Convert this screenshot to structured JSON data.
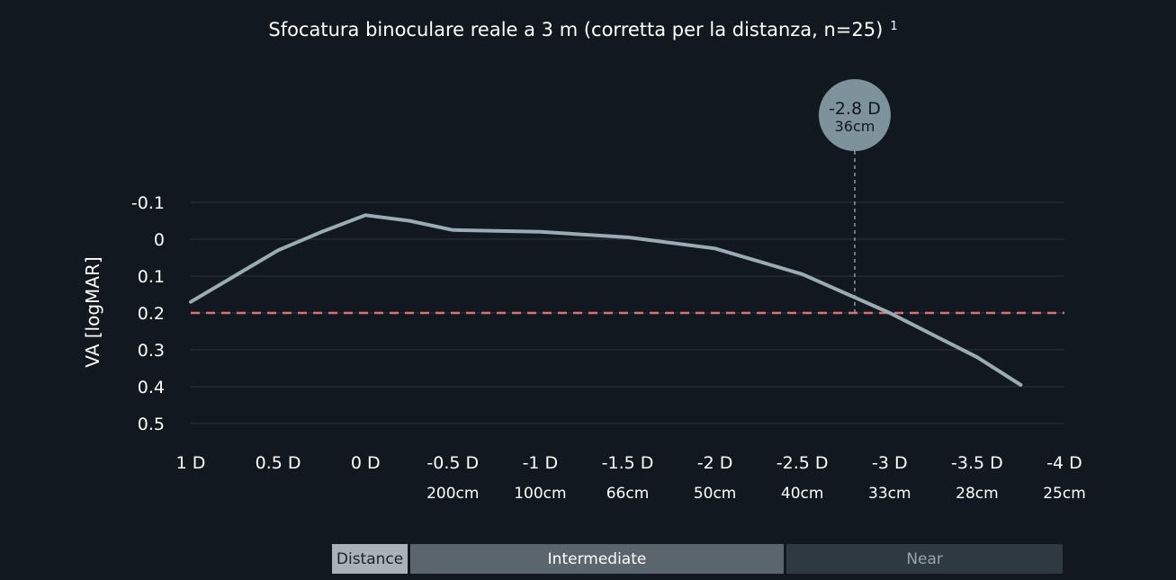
{
  "chart_data": {
    "type": "line",
    "title": "Sfocatura binoculare reale a 3 m (corretta per la distanza, n=25)",
    "title_note": "1",
    "ylabel": "VA [logMAR]",
    "xlabel": "",
    "x_ticks": [
      {
        "value": 1,
        "label": "1 D",
        "sub": ""
      },
      {
        "value": 0.5,
        "label": "0.5 D",
        "sub": ""
      },
      {
        "value": 0,
        "label": "0 D",
        "sub": ""
      },
      {
        "value": -0.5,
        "label": "-0.5 D",
        "sub": "200cm"
      },
      {
        "value": -1,
        "label": "-1 D",
        "sub": "100cm"
      },
      {
        "value": -1.5,
        "label": "-1.5 D",
        "sub": "66cm"
      },
      {
        "value": -2,
        "label": "-2 D",
        "sub": "50cm"
      },
      {
        "value": -2.5,
        "label": "-2.5 D",
        "sub": "40cm"
      },
      {
        "value": -3,
        "label": "-3 D",
        "sub": "33cm"
      },
      {
        "value": -3.5,
        "label": "-3.5 D",
        "sub": "28cm"
      },
      {
        "value": -4,
        "label": "-4 D",
        "sub": "25cm"
      }
    ],
    "y_ticks": [
      {
        "value": -0.1,
        "label": "-0.1"
      },
      {
        "value": 0,
        "label": "0"
      },
      {
        "value": 0.1,
        "label": "0.1"
      },
      {
        "value": 0.2,
        "label": "0.2"
      },
      {
        "value": 0.3,
        "label": "0.3"
      },
      {
        "value": 0.4,
        "label": "0.4"
      },
      {
        "value": 0.5,
        "label": "0.5"
      }
    ],
    "xlim": [
      1,
      -4
    ],
    "ylim": [
      -0.1,
      0.5
    ],
    "y_inverted": true,
    "grid": true,
    "series": [
      {
        "color": "#9aabb3",
        "x": [
          1,
          0.5,
          0.25,
          0,
          -0.25,
          -0.5,
          -1,
          -1.5,
          -2,
          -2.5,
          -3,
          -3.25,
          -3.5,
          -3.75
        ],
        "y": [
          0.17,
          0.03,
          -0.02,
          -0.065,
          -0.05,
          -0.025,
          -0.02,
          -0.005,
          0.025,
          0.095,
          0.2,
          0.26,
          0.32,
          0.395
        ]
      }
    ],
    "threshold": {
      "y": 0.2,
      "color": "#d9707a"
    },
    "annotation": {
      "x": -2.8,
      "label": "-2.8 D",
      "sublabel": "36cm",
      "color": "#7e929b"
    },
    "zones": [
      {
        "label": "Distance",
        "from": 0.2,
        "to": -0.25,
        "bg": "#a9b2b8",
        "fg": "#1a222b"
      },
      {
        "label": "Intermediate",
        "from": -0.25,
        "to": -2.4,
        "bg": "#5b656d",
        "fg": "#ffffff"
      },
      {
        "label": "Near",
        "from": -2.4,
        "to": -4,
        "bg": "#2f3942",
        "fg": "#9aa4ab"
      }
    ]
  }
}
